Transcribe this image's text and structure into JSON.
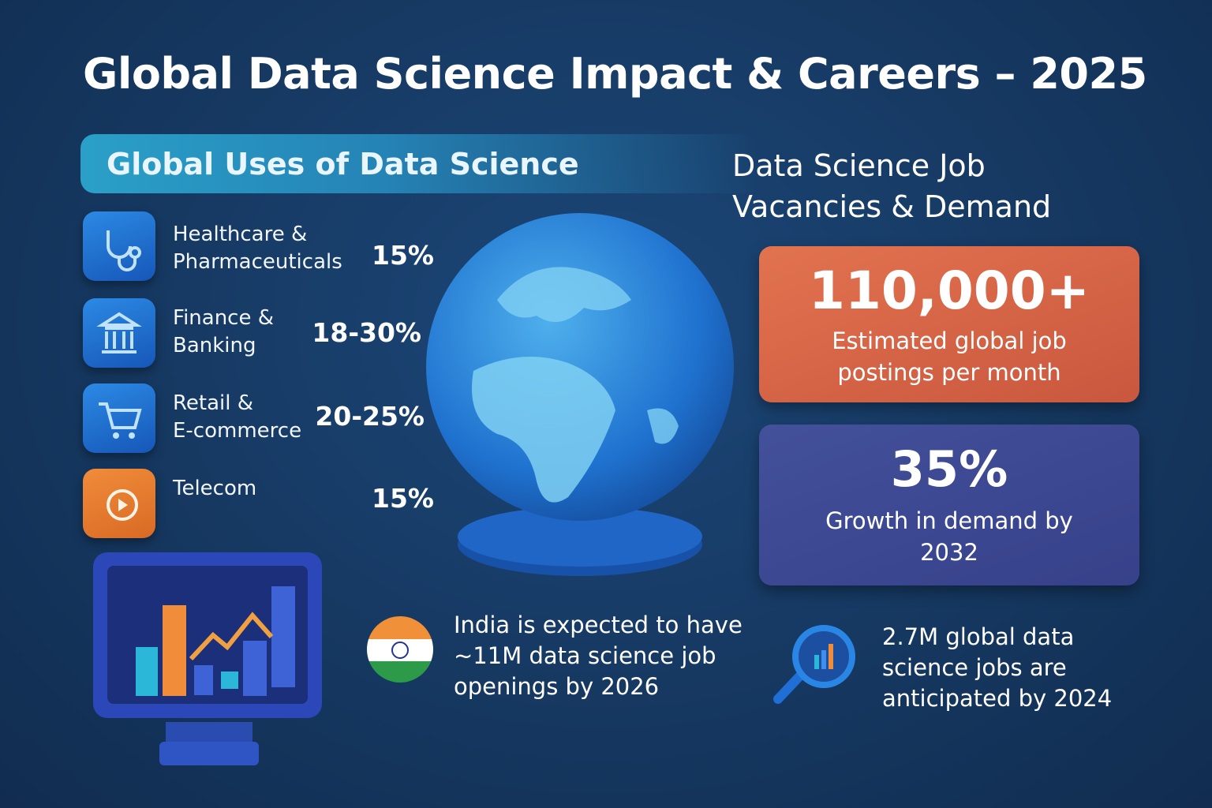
{
  "title": "Global Data Science Impact & Careers – 2025",
  "uses": {
    "heading": "Global Uses of Data Science",
    "sectors": [
      {
        "label": [
          "Healthcare &",
          "Pharmaceuticals"
        ],
        "share": "15%"
      },
      {
        "label": [
          "Finance &",
          "Banking"
        ],
        "share": "18-30%"
      },
      {
        "label": [
          "Retail &",
          "E-commerce"
        ],
        "share": "20-25%"
      },
      {
        "label": [
          "Telecom"
        ],
        "share": "15%"
      }
    ]
  },
  "jobs": {
    "heading": [
      "Data Science Job",
      "Vacancies & Demand"
    ],
    "cards": [
      {
        "value": "110,000+",
        "caption": [
          "Estimated global job",
          "postings per month"
        ]
      },
      {
        "value": "35%",
        "caption": [
          "Growth in demand by",
          "2032"
        ]
      }
    ]
  },
  "notes": [
    {
      "lines": [
        "India is expected to have",
        "~11M data science job",
        "openings by 2026"
      ]
    },
    {
      "lines": [
        "2.7M global data",
        "science jobs are",
        "anticipated by 2024"
      ]
    }
  ]
}
